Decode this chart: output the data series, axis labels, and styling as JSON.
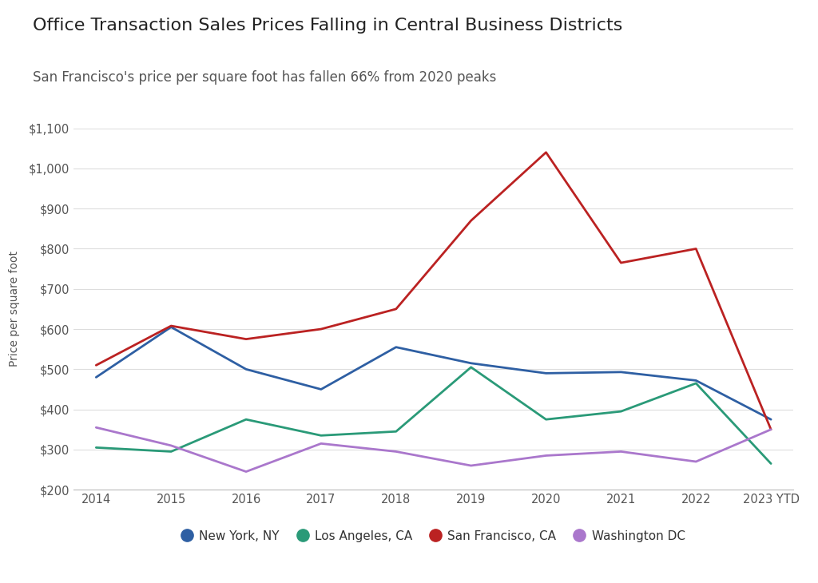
{
  "title": "Office Transaction Sales Prices Falling in Central Business Districts",
  "subtitle": "San Francisco's price per square foot has fallen 66% from 2020 peaks",
  "ylabel": "Price per square foot",
  "x_labels": [
    "2014",
    "2015",
    "2016",
    "2017",
    "2018",
    "2019",
    "2020",
    "2021",
    "2022",
    "2023 YTD"
  ],
  "ylim": [
    200,
    1100
  ],
  "yticks": [
    200,
    300,
    400,
    500,
    600,
    700,
    800,
    900,
    1000,
    1100
  ],
  "series": [
    {
      "label": "New York, NY",
      "color": "#2e5fa3",
      "values": [
        480,
        605,
        500,
        450,
        555,
        515,
        490,
        493,
        472,
        375
      ]
    },
    {
      "label": "Los Angeles, CA",
      "color": "#2a9a78",
      "values": [
        305,
        295,
        375,
        335,
        345,
        505,
        375,
        395,
        465,
        265
      ]
    },
    {
      "label": "San Francisco, CA",
      "color": "#bb2222",
      "values": [
        510,
        608,
        575,
        600,
        650,
        870,
        1040,
        765,
        800,
        350
      ]
    },
    {
      "label": "Washington DC",
      "color": "#aa77cc",
      "values": [
        355,
        310,
        245,
        315,
        295,
        260,
        285,
        295,
        270,
        350
      ]
    }
  ],
  "background_color": "#ffffff",
  "grid_color": "#dddddd",
  "title_fontsize": 16,
  "subtitle_fontsize": 12,
  "label_fontsize": 10,
  "tick_fontsize": 10.5,
  "legend_fontsize": 11,
  "line_width": 2.0
}
